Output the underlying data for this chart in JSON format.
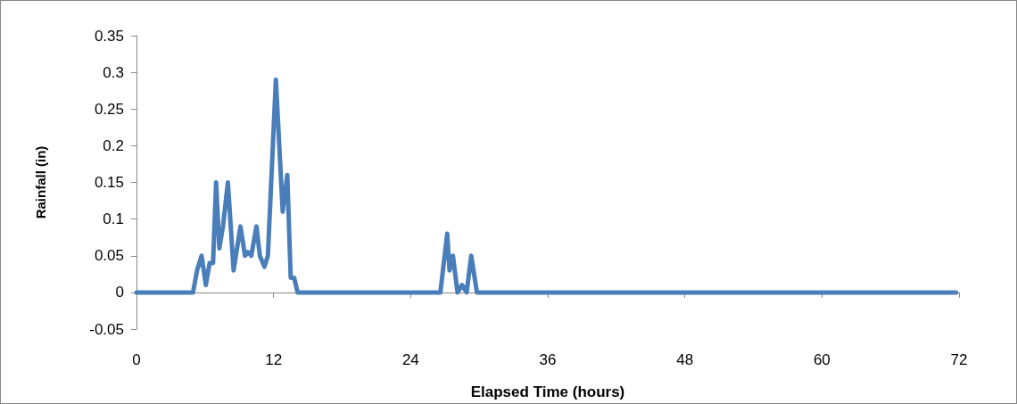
{
  "chart_data": {
    "type": "line",
    "xlabel": "Elapsed Time (hours)",
    "ylabel": "Rainfall (in)",
    "x": [
      0,
      4.95,
      5.3,
      5.7,
      6.07,
      6.4,
      6.7,
      6.97,
      7.25,
      7.57,
      8.0,
      8.5,
      9.1,
      9.5,
      9.75,
      10.05,
      10.5,
      10.8,
      11.2,
      11.5,
      12.2,
      12.8,
      13.2,
      13.5,
      13.8,
      14.1,
      26.6,
      27.2,
      27.4,
      27.7,
      28.1,
      28.5,
      28.9,
      29.3,
      29.8,
      71.75
    ],
    "series": [
      {
        "color": "#4a7ebb",
        "values": [
          0,
          0,
          0.03,
          0.05,
          0.01,
          0.04,
          0.04,
          0.15,
          0.06,
          0.09,
          0.15,
          0.03,
          0.09,
          0.05,
          0.055,
          0.05,
          0.09,
          0.05,
          0.035,
          0.05,
          0.29,
          0.11,
          0.16,
          0.02,
          0.02,
          0,
          0,
          0.08,
          0.03,
          0.05,
          0,
          0.01,
          0,
          0.05,
          0,
          0
        ]
      }
    ],
    "xlim": [
      0,
      72
    ],
    "xticks": [
      0,
      12,
      24,
      36,
      48,
      60,
      72
    ],
    "ylim": [
      -0.05,
      0.35
    ],
    "yticks": [
      -0.05,
      0,
      0.05,
      0.1,
      0.15,
      0.2,
      0.25,
      0.3,
      0.35
    ],
    "marker": "none",
    "line_style": "solid"
  }
}
